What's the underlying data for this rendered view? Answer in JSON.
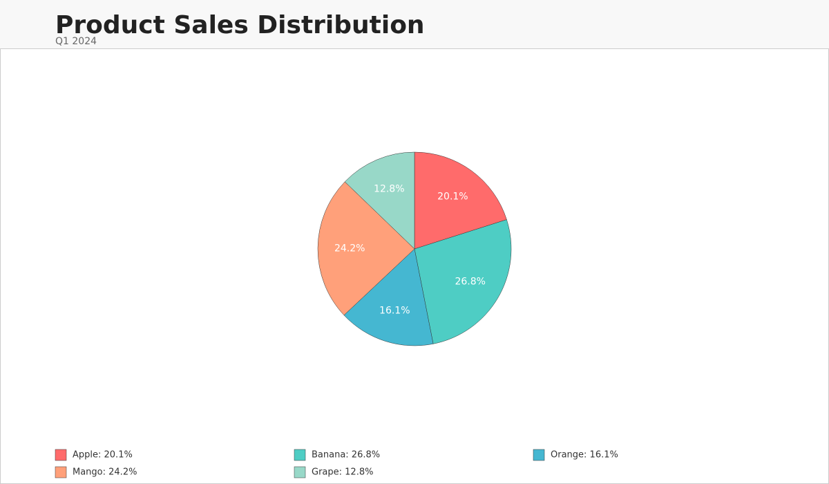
{
  "chart_data": {
    "type": "pie",
    "title": "Product Sales Distribution",
    "subtitle": "Q1 2024",
    "categories": [
      "Apple",
      "Banana",
      "Orange",
      "Mango",
      "Grape"
    ],
    "values": [
      20.1,
      26.8,
      16.1,
      24.2,
      12.8
    ],
    "value_labels": [
      "20.1%",
      "26.8%",
      "16.1%",
      "24.2%",
      "12.8%"
    ],
    "legend_labels": [
      "Apple: 20.1%",
      "Banana: 26.8%",
      "Orange: 16.1%",
      "Mango: 24.2%",
      "Grape: 12.8%"
    ],
    "colors": [
      "#ff6b6b",
      "#4ecdc4",
      "#45b7d1",
      "#ffa07a",
      "#98d8c8"
    ]
  }
}
